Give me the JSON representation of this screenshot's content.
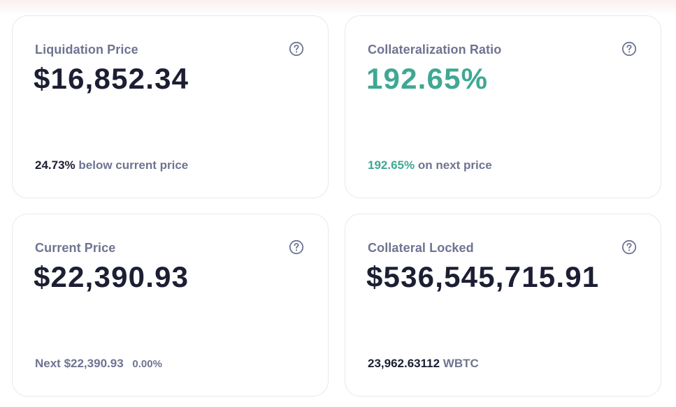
{
  "cards": {
    "liquidation": {
      "title": "Liquidation Price",
      "value": "$16,852.34",
      "foot_value": "24.73%",
      "foot_text": "below current price"
    },
    "collateralization": {
      "title": "Collateralization Ratio",
      "value": "192.65%",
      "foot_value": "192.65%",
      "foot_text": "on next price"
    },
    "current": {
      "title": "Current Price",
      "value": "$22,390.93",
      "foot_text": "Next $22,390.93",
      "foot_change": "0.00%"
    },
    "collateral": {
      "title": "Collateral Locked",
      "value": "$536,545,715.91",
      "foot_value": "23,962.63112",
      "foot_text": "WBTC"
    }
  },
  "icons": {
    "help": "help-circle-icon"
  },
  "colors": {
    "value_text": "#1c1e33",
    "muted_text": "#6e7491",
    "positive_green": "#3fa893",
    "card_border": "#e6e8ee"
  }
}
